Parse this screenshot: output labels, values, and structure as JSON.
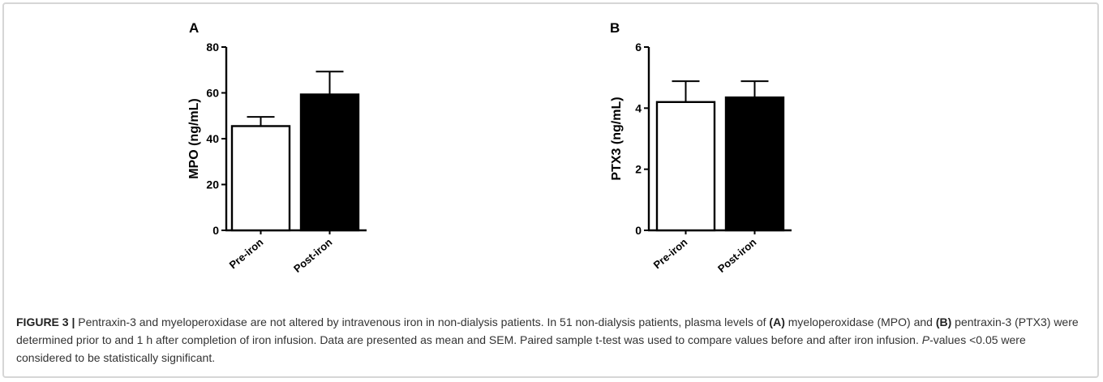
{
  "chart_data": [
    {
      "type": "bar",
      "panel": "A",
      "categories": [
        "Pre-iron",
        "Post-iron"
      ],
      "values": [
        45.5,
        59.3
      ],
      "error_sem": [
        4.0,
        10.0
      ],
      "bar_colors": [
        "#ffffff",
        "#000000"
      ],
      "ylabel": "MPO (ng/mL)",
      "ylim": [
        0,
        80
      ],
      "yticks": [
        "0",
        "20",
        "40",
        "60",
        "80"
      ],
      "grid": false
    },
    {
      "type": "bar",
      "panel": "B",
      "categories": [
        "Pre-iron",
        "Post-iron"
      ],
      "values": [
        4.2,
        4.35
      ],
      "error_sem": [
        0.68,
        0.53
      ],
      "bar_colors": [
        "#ffffff",
        "#000000"
      ],
      "ylabel": "PTX3 (ng/mL)",
      "ylim": [
        0,
        6
      ],
      "yticks": [
        "0",
        "2",
        "4",
        "6"
      ],
      "grid": false
    }
  ],
  "caption": {
    "figure_label": "FIGURE 3 |",
    "sentence1": "Pentraxin-3 and myeloperoxidase are not altered by intravenous iron in non-dialysis patients. In 51 non-dialysis patients, plasma levels of",
    "ref_a": "(A)",
    "sentence2": "myeloperoxidase (MPO) and",
    "ref_b": "(B)",
    "sentence3": "pentraxin-3 (PTX3) were determined prior to and 1 h after completion of iron infusion. Data are presented as mean and SEM. Paired sample t-test was used to compare values before and after iron infusion.",
    "p_italic": "P",
    "sentence4": "-values <0.05 were considered to be statistically significant."
  }
}
